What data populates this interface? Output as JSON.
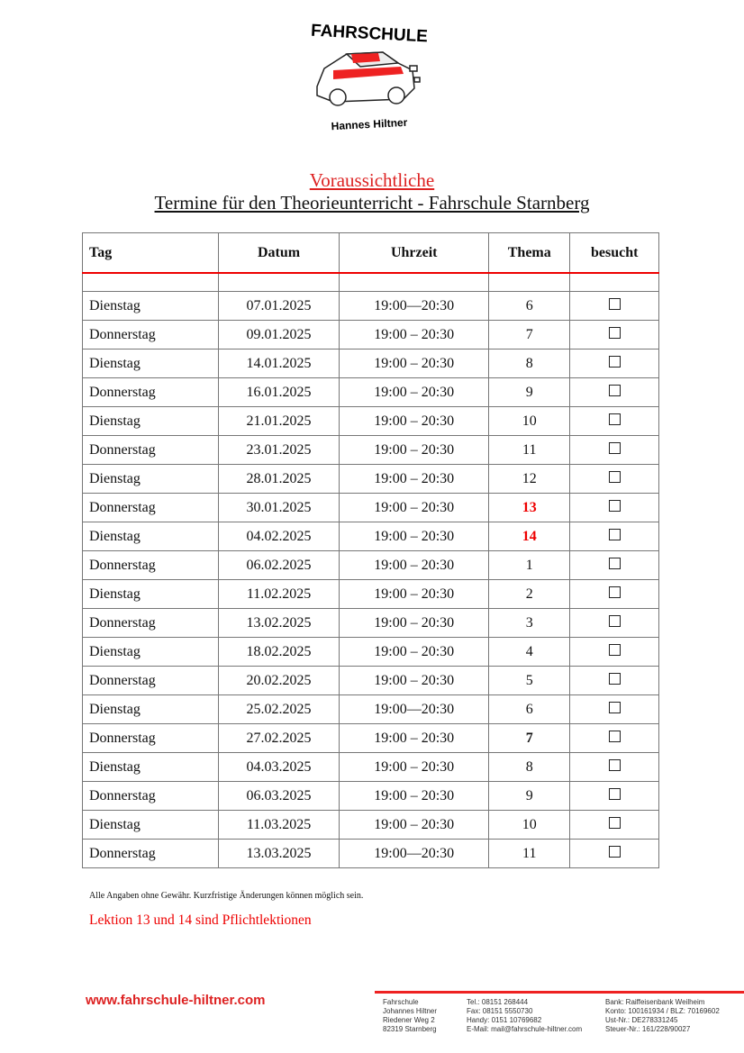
{
  "logo": {
    "top": "FAHRSCHULE",
    "bottom": "Hannes Hiltner"
  },
  "title_line1": "Voraussichtliche",
  "title_line2": "Termine für den Theorieunterricht - Fahrschule Starnberg",
  "table": {
    "headers": [
      "Tag",
      "Datum",
      "Uhrzeit",
      "Thema",
      "besucht"
    ],
    "rows": [
      [
        "Dienstag",
        "07.01.2025",
        "19:00—20:30",
        "6",
        ""
      ],
      [
        "Donnerstag",
        "09.01.2025",
        "19:00 – 20:30",
        "7",
        ""
      ],
      [
        "Dienstag",
        "14.01.2025",
        "19:00 – 20:30",
        "8",
        ""
      ],
      [
        "Donnerstag",
        "16.01.2025",
        "19:00 – 20:30",
        "9",
        ""
      ],
      [
        "Dienstag",
        "21.01.2025",
        "19:00 – 20:30",
        "10",
        ""
      ],
      [
        "Donnerstag",
        "23.01.2025",
        "19:00 – 20:30",
        "11",
        ""
      ],
      [
        "Dienstag",
        "28.01.2025",
        "19:00 – 20:30",
        "12",
        ""
      ],
      [
        "Donnerstag",
        "30.01.2025",
        "19:00 – 20:30",
        "13",
        "red"
      ],
      [
        "Dienstag",
        "04.02.2025",
        "19:00 – 20:30",
        "14",
        "red"
      ],
      [
        "Donnerstag",
        "06.02.2025",
        "19:00 – 20:30",
        "1",
        ""
      ],
      [
        "Dienstag",
        "11.02.2025",
        "19:00 – 20:30",
        "2",
        ""
      ],
      [
        "Donnerstag",
        "13.02.2025",
        "19:00 – 20:30",
        "3",
        ""
      ],
      [
        "Dienstag",
        "18.02.2025",
        "19:00 – 20:30",
        "4",
        ""
      ],
      [
        "Donnerstag",
        "20.02.2025",
        "19:00 – 20:30",
        "5",
        ""
      ],
      [
        "Dienstag",
        "25.02.2025",
        "19:00—20:30",
        "6",
        ""
      ],
      [
        "Donnerstag",
        "27.02.2025",
        "19:00 – 20:30",
        "7",
        "bold"
      ],
      [
        "Dienstag",
        "04.03.2025",
        "19:00 – 20:30",
        "8",
        ""
      ],
      [
        "Donnerstag",
        "06.03.2025",
        "19:00 – 20:30",
        "9",
        ""
      ],
      [
        "Dienstag",
        "11.03.2025",
        "19:00 – 20:30",
        "10",
        ""
      ],
      [
        "Donnerstag",
        "13.03.2025",
        "19:00—20:30",
        "11",
        ""
      ]
    ]
  },
  "note": "Alle Angaben ohne Gewähr. Kurzfristige Änderungen können möglich sein.",
  "mandatory": "Lektion 13 und 14 sind Pflichtlektionen",
  "footer": {
    "website": "www.fahrschule-hiltner.com",
    "col1": [
      "Fahrschule",
      "Johannes Hiltner",
      "Riedener Weg 2",
      "82319 Starnberg"
    ],
    "col2": [
      "Tel.: 08151 268444",
      "Fax: 08151 5550730",
      "Handy: 0151 10769682",
      "E-Mail: mail@fahrschule-hiltner.com"
    ],
    "col3": [
      "Bank: Raiffeisenbank Weilheim",
      "Konto: 100161934 / BLZ: 70169602",
      "Ust-Nr.: DE278331245",
      "Steuer-Nr.: 161/228/90027"
    ]
  },
  "colors": {
    "accent": "#e00000"
  }
}
